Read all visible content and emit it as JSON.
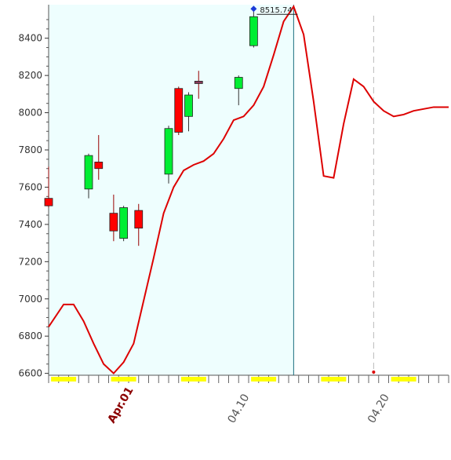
{
  "chart_data": {
    "type": "candlestick",
    "ylim": [
      6590,
      8580
    ],
    "yticks": [
      6600,
      6800,
      7000,
      7200,
      7400,
      7600,
      7800,
      8000,
      8200,
      8400
    ],
    "ytick_labels": [
      "6600",
      "6800",
      "7000",
      "7200",
      "7400",
      "7600",
      "7800",
      "8000",
      "8200",
      "8400"
    ],
    "xlim": [
      0,
      40
    ],
    "xtick_labels": [
      {
        "label": "Apr.01",
        "x": 6.5,
        "color": "#8b0000",
        "bold": true
      },
      {
        "label": "04.10",
        "x": 18.5,
        "color": "#555555",
        "bold": false
      },
      {
        "label": "04.20",
        "x": 32.5,
        "color": "#555555",
        "bold": false
      }
    ],
    "history_end_x": 24.5,
    "cursor_x": 32.5,
    "last_price_label": "8515.74",
    "last_price_value": 8515.74,
    "candles": [
      {
        "x": 0,
        "open": 7500,
        "close": 7540,
        "high": 7710,
        "low": 7490,
        "color": "red"
      },
      {
        "x": 4,
        "open": 7590,
        "close": 7770,
        "high": 7780,
        "low": 7540,
        "color": "green"
      },
      {
        "x": 5,
        "open": 7735,
        "close": 7700,
        "high": 7880,
        "low": 7640,
        "color": "red"
      },
      {
        "x": 6.5,
        "open": 7460,
        "close": 7365,
        "high": 7560,
        "low": 7310,
        "color": "red"
      },
      {
        "x": 7.5,
        "open": 7325,
        "close": 7490,
        "high": 7500,
        "low": 7310,
        "color": "green"
      },
      {
        "x": 9,
        "open": 7475,
        "close": 7380,
        "high": 7510,
        "low": 7285,
        "color": "red"
      },
      {
        "x": 12,
        "open": 7670,
        "close": 7915,
        "high": 7930,
        "low": 7620,
        "color": "green"
      },
      {
        "x": 13,
        "open": 8130,
        "close": 7895,
        "high": 8140,
        "low": 7880,
        "color": "red"
      },
      {
        "x": 14,
        "open": 7980,
        "close": 8095,
        "high": 8110,
        "low": 7900,
        "color": "green"
      },
      {
        "x": 15,
        "open": 8165,
        "close": 8165,
        "high": 8225,
        "low": 8075,
        "color": "doji"
      },
      {
        "x": 19,
        "open": 8130,
        "close": 8190,
        "high": 8200,
        "low": 8040,
        "color": "green"
      },
      {
        "x": 20.5,
        "open": 8360,
        "close": 8515.74,
        "high": 8550,
        "low": 8350,
        "color": "green"
      }
    ],
    "forecast_line": {
      "x": [
        0,
        1.5,
        2.5,
        3.5,
        4.5,
        5.5,
        6.5,
        7.5,
        8.5,
        9.5,
        10.5,
        11.5,
        12.5,
        13.5,
        14.5,
        15.5,
        16.5,
        17.5,
        18.5,
        19.5,
        20.5,
        21.5,
        22.5,
        23.5,
        24.5,
        25.5,
        26.5,
        27.5,
        28.5,
        29.5,
        30.5,
        31.5,
        32.5,
        33.5,
        34.5,
        35.5,
        36.5,
        37.5,
        38.5,
        39.5,
        40
      ],
      "y": [
        6850,
        6970,
        6970,
        6880,
        6760,
        6650,
        6600,
        6660,
        6760,
        6990,
        7220,
        7460,
        7600,
        7690,
        7720,
        7740,
        7780,
        7860,
        7960,
        7980,
        8040,
        8140,
        8310,
        8490,
        8570,
        8420,
        8060,
        7660,
        7650,
        7940,
        8180,
        8140,
        8060,
        8010,
        7980,
        7990,
        8010,
        8020,
        8030,
        8030,
        8030
      ]
    },
    "weekend_markers": [
      1.5,
      7.5,
      14.5,
      21.5,
      28.5,
      35.5
    ]
  }
}
